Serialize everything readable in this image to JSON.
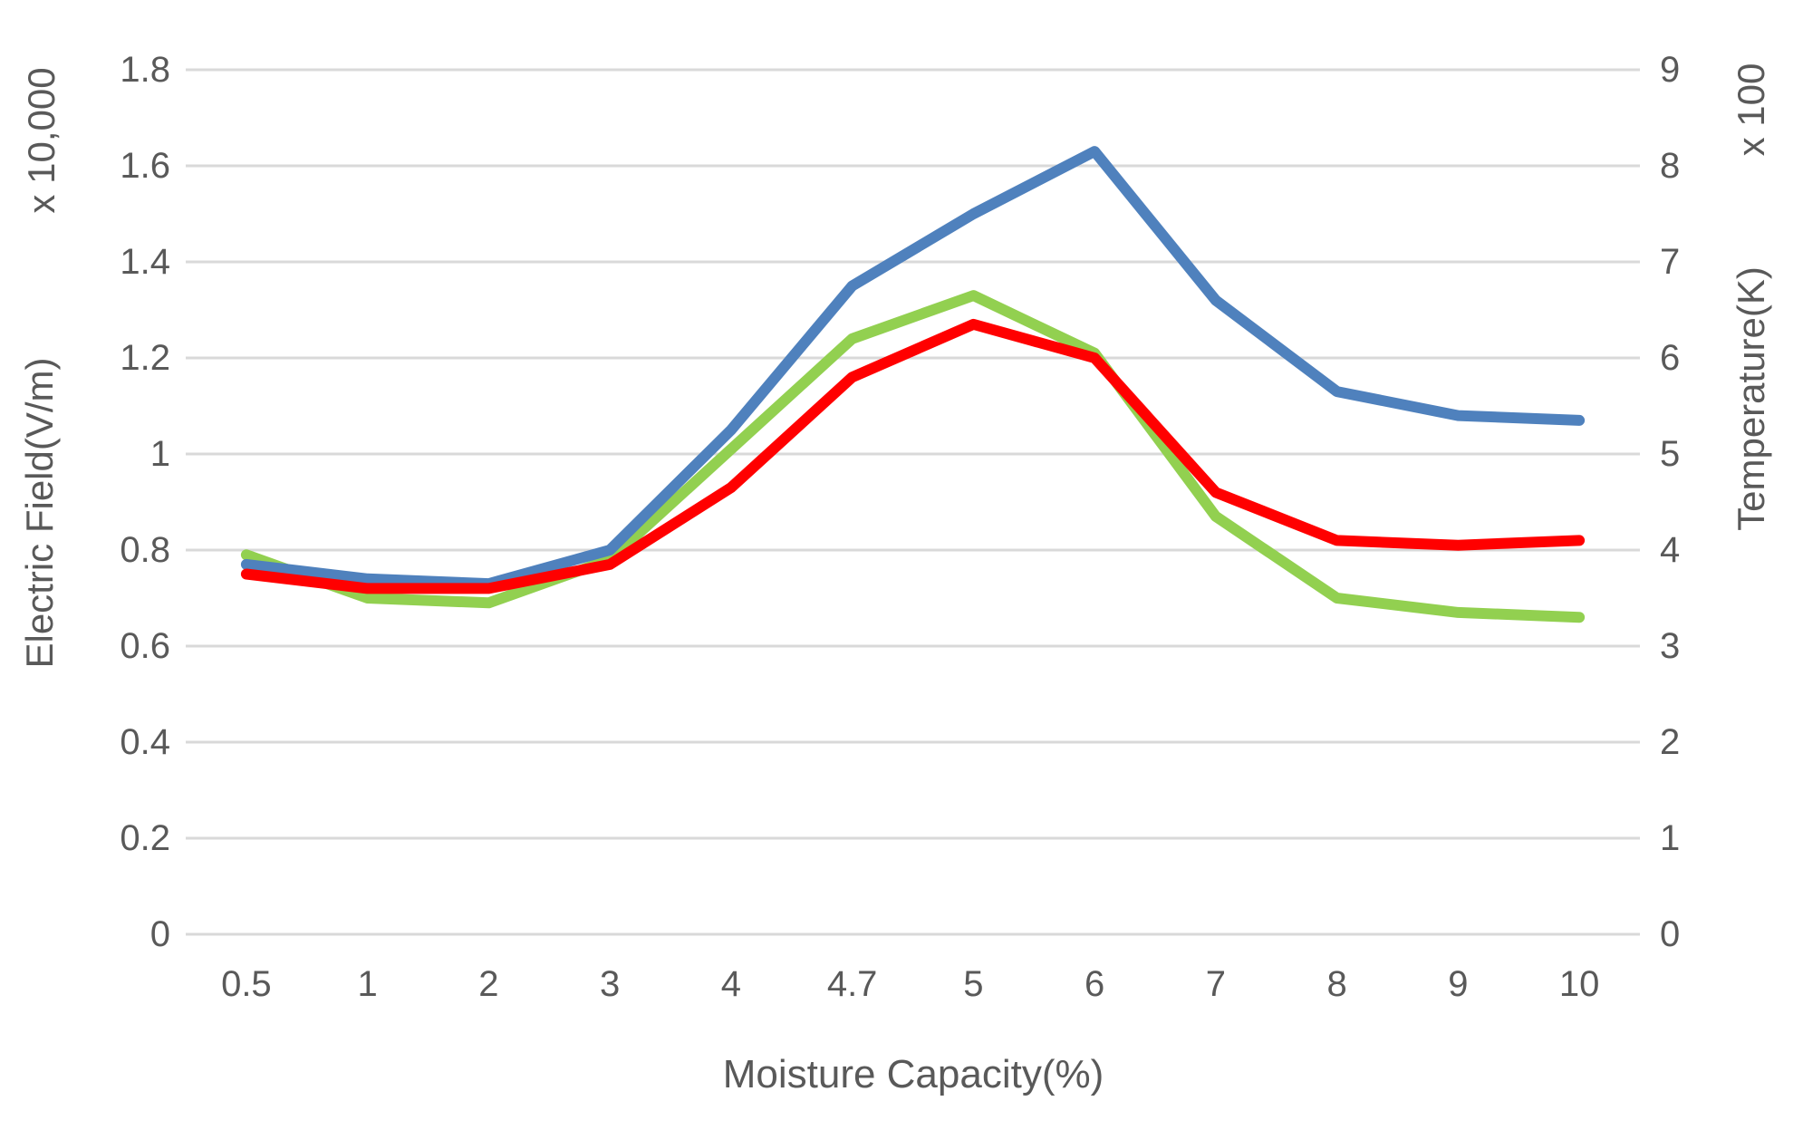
{
  "chart_data": {
    "type": "line",
    "title": "",
    "categories": [
      "0.5",
      "1",
      "2",
      "3",
      "4",
      "4.7",
      "5",
      "6",
      "7",
      "8",
      "9",
      "10"
    ],
    "xlabel": "Moisture Capacity(%)",
    "series": [
      {
        "name": "green-series",
        "color": "#92D050",
        "values": [
          0.79,
          0.7,
          0.69,
          0.78,
          1.01,
          1.24,
          1.33,
          1.21,
          0.87,
          0.7,
          0.67,
          0.66
        ]
      },
      {
        "name": "blue-series",
        "color": "#4F81BD",
        "values": [
          0.77,
          0.74,
          0.73,
          0.8,
          1.05,
          1.35,
          1.5,
          1.63,
          1.32,
          1.13,
          1.08,
          1.07
        ]
      },
      {
        "name": "red-series",
        "color": "#FF0000",
        "values": [
          0.75,
          0.72,
          0.72,
          0.77,
          0.93,
          1.16,
          1.27,
          1.2,
          0.92,
          0.82,
          0.81,
          0.82
        ]
      }
    ],
    "left_axis": {
      "label": "Electric Field(V/m)",
      "unit_label": "x 10,000",
      "min": 0,
      "max": 1.8,
      "step": 0.2,
      "ticks": [
        "1.8",
        "1.6",
        "1.4",
        "1.2",
        "1",
        "0.8",
        "0.6",
        "0.4",
        "0.2",
        "0"
      ]
    },
    "right_axis": {
      "label": "Temperature(K)",
      "unit_label": "x 100",
      "min": 0,
      "max": 9,
      "step": 1,
      "ticks": [
        "9",
        "8",
        "7",
        "6",
        "5",
        "4",
        "3",
        "2",
        "1",
        "0"
      ]
    },
    "grid": true,
    "legend": "none",
    "colors": {
      "gridline": "#D9D9D9",
      "axis_text": "#595959",
      "background": "#FFFFFF"
    }
  }
}
